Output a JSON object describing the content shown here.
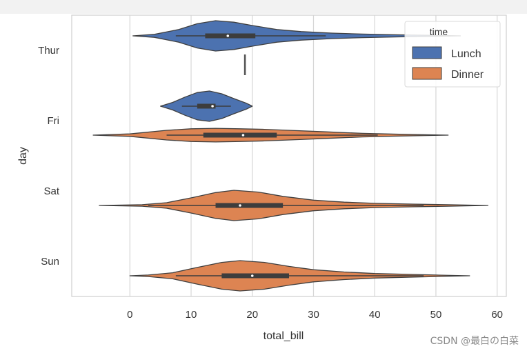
{
  "chart_data": {
    "type": "violin",
    "orientation": "horizontal",
    "xlabel": "total_bill",
    "ylabel": "day",
    "xlim": [
      -9.5,
      61.5
    ],
    "x_ticks": [
      0,
      10,
      20,
      30,
      40,
      50,
      60
    ],
    "grid": true,
    "legend": {
      "title": "time",
      "placement": "top-right",
      "entries": [
        "Lunch",
        "Dinner"
      ]
    },
    "colors": {
      "Lunch": "#4c72b0",
      "Dinner": "#dd8452",
      "outline": "#3f3f3f",
      "grid": "#d6d6d6"
    },
    "categories": [
      "Thur",
      "Fri",
      "Sat",
      "Sun"
    ],
    "series": [
      {
        "name": "Lunch",
        "violins": [
          {
            "category": "Thur",
            "min": 0.5,
            "max": 54,
            "q1": 12.3,
            "median": 16.0,
            "q3": 20.5,
            "whisker_low": 7.5,
            "whisker_high": 32,
            "density": [
              [
                0.5,
                0
              ],
              [
                4,
                0.1
              ],
              [
                8,
                0.42
              ],
              [
                11,
                0.8
              ],
              [
                14,
                1.0
              ],
              [
                17,
                0.9
              ],
              [
                20,
                0.68
              ],
              [
                24,
                0.42
              ],
              [
                28,
                0.28
              ],
              [
                33,
                0.18
              ],
              [
                38,
                0.12
              ],
              [
                44,
                0.07
              ],
              [
                50,
                0.03
              ],
              [
                54,
                0
              ]
            ]
          },
          {
            "category": "Fri",
            "min": 5,
            "max": 20,
            "q1": 11,
            "median": 13.5,
            "q3": 14,
            "whisker_low": 8.5,
            "whisker_high": 16.5,
            "density": [
              [
                5,
                0
              ],
              [
                7,
                0.25
              ],
              [
                9,
                0.6
              ],
              [
                11,
                0.9
              ],
              [
                13,
                1.0
              ],
              [
                15,
                0.82
              ],
              [
                17,
                0.5
              ],
              [
                19,
                0.2
              ],
              [
                20,
                0
              ]
            ]
          }
        ]
      },
      {
        "name": "Dinner",
        "violins": [
          {
            "category": "Thur",
            "value": 18.8
          },
          {
            "category": "Fri",
            "min": -6,
            "max": 52,
            "q1": 12,
            "median": 18.5,
            "q3": 24,
            "whisker_low": 6,
            "whisker_high": 40.5,
            "density": [
              [
                -6,
                0
              ],
              [
                0,
                0.08
              ],
              [
                6,
                0.32
              ],
              [
                10,
                0.42
              ],
              [
                14,
                0.45
              ],
              [
                18,
                0.42
              ],
              [
                22,
                0.38
              ],
              [
                26,
                0.32
              ],
              [
                32,
                0.22
              ],
              [
                38,
                0.12
              ],
              [
                44,
                0.06
              ],
              [
                52,
                0
              ]
            ]
          },
          {
            "category": "Sat",
            "min": -5,
            "max": 58.5,
            "q1": 14,
            "median": 18,
            "q3": 25,
            "whisker_low": 3,
            "whisker_high": 48,
            "density": [
              [
                -5,
                0
              ],
              [
                2,
                0.05
              ],
              [
                6,
                0.18
              ],
              [
                10,
                0.5
              ],
              [
                14,
                0.85
              ],
              [
                17,
                1.0
              ],
              [
                21,
                0.88
              ],
              [
                25,
                0.6
              ],
              [
                30,
                0.35
              ],
              [
                35,
                0.22
              ],
              [
                40,
                0.14
              ],
              [
                46,
                0.09
              ],
              [
                52,
                0.05
              ],
              [
                58.5,
                0
              ]
            ]
          },
          {
            "category": "Sun",
            "min": 0,
            "max": 55.5,
            "q1": 15,
            "median": 20,
            "q3": 26,
            "whisker_low": 7.5,
            "whisker_high": 48,
            "density": [
              [
                0,
                0
              ],
              [
                3,
                0.05
              ],
              [
                7,
                0.2
              ],
              [
                11,
                0.55
              ],
              [
                15,
                0.88
              ],
              [
                18,
                1.0
              ],
              [
                22,
                0.88
              ],
              [
                26,
                0.62
              ],
              [
                30,
                0.4
              ],
              [
                35,
                0.25
              ],
              [
                40,
                0.15
              ],
              [
                46,
                0.09
              ],
              [
                50,
                0.05
              ],
              [
                55.5,
                0
              ]
            ]
          }
        ]
      }
    ]
  },
  "watermark": "CSDN @最白の白菜"
}
